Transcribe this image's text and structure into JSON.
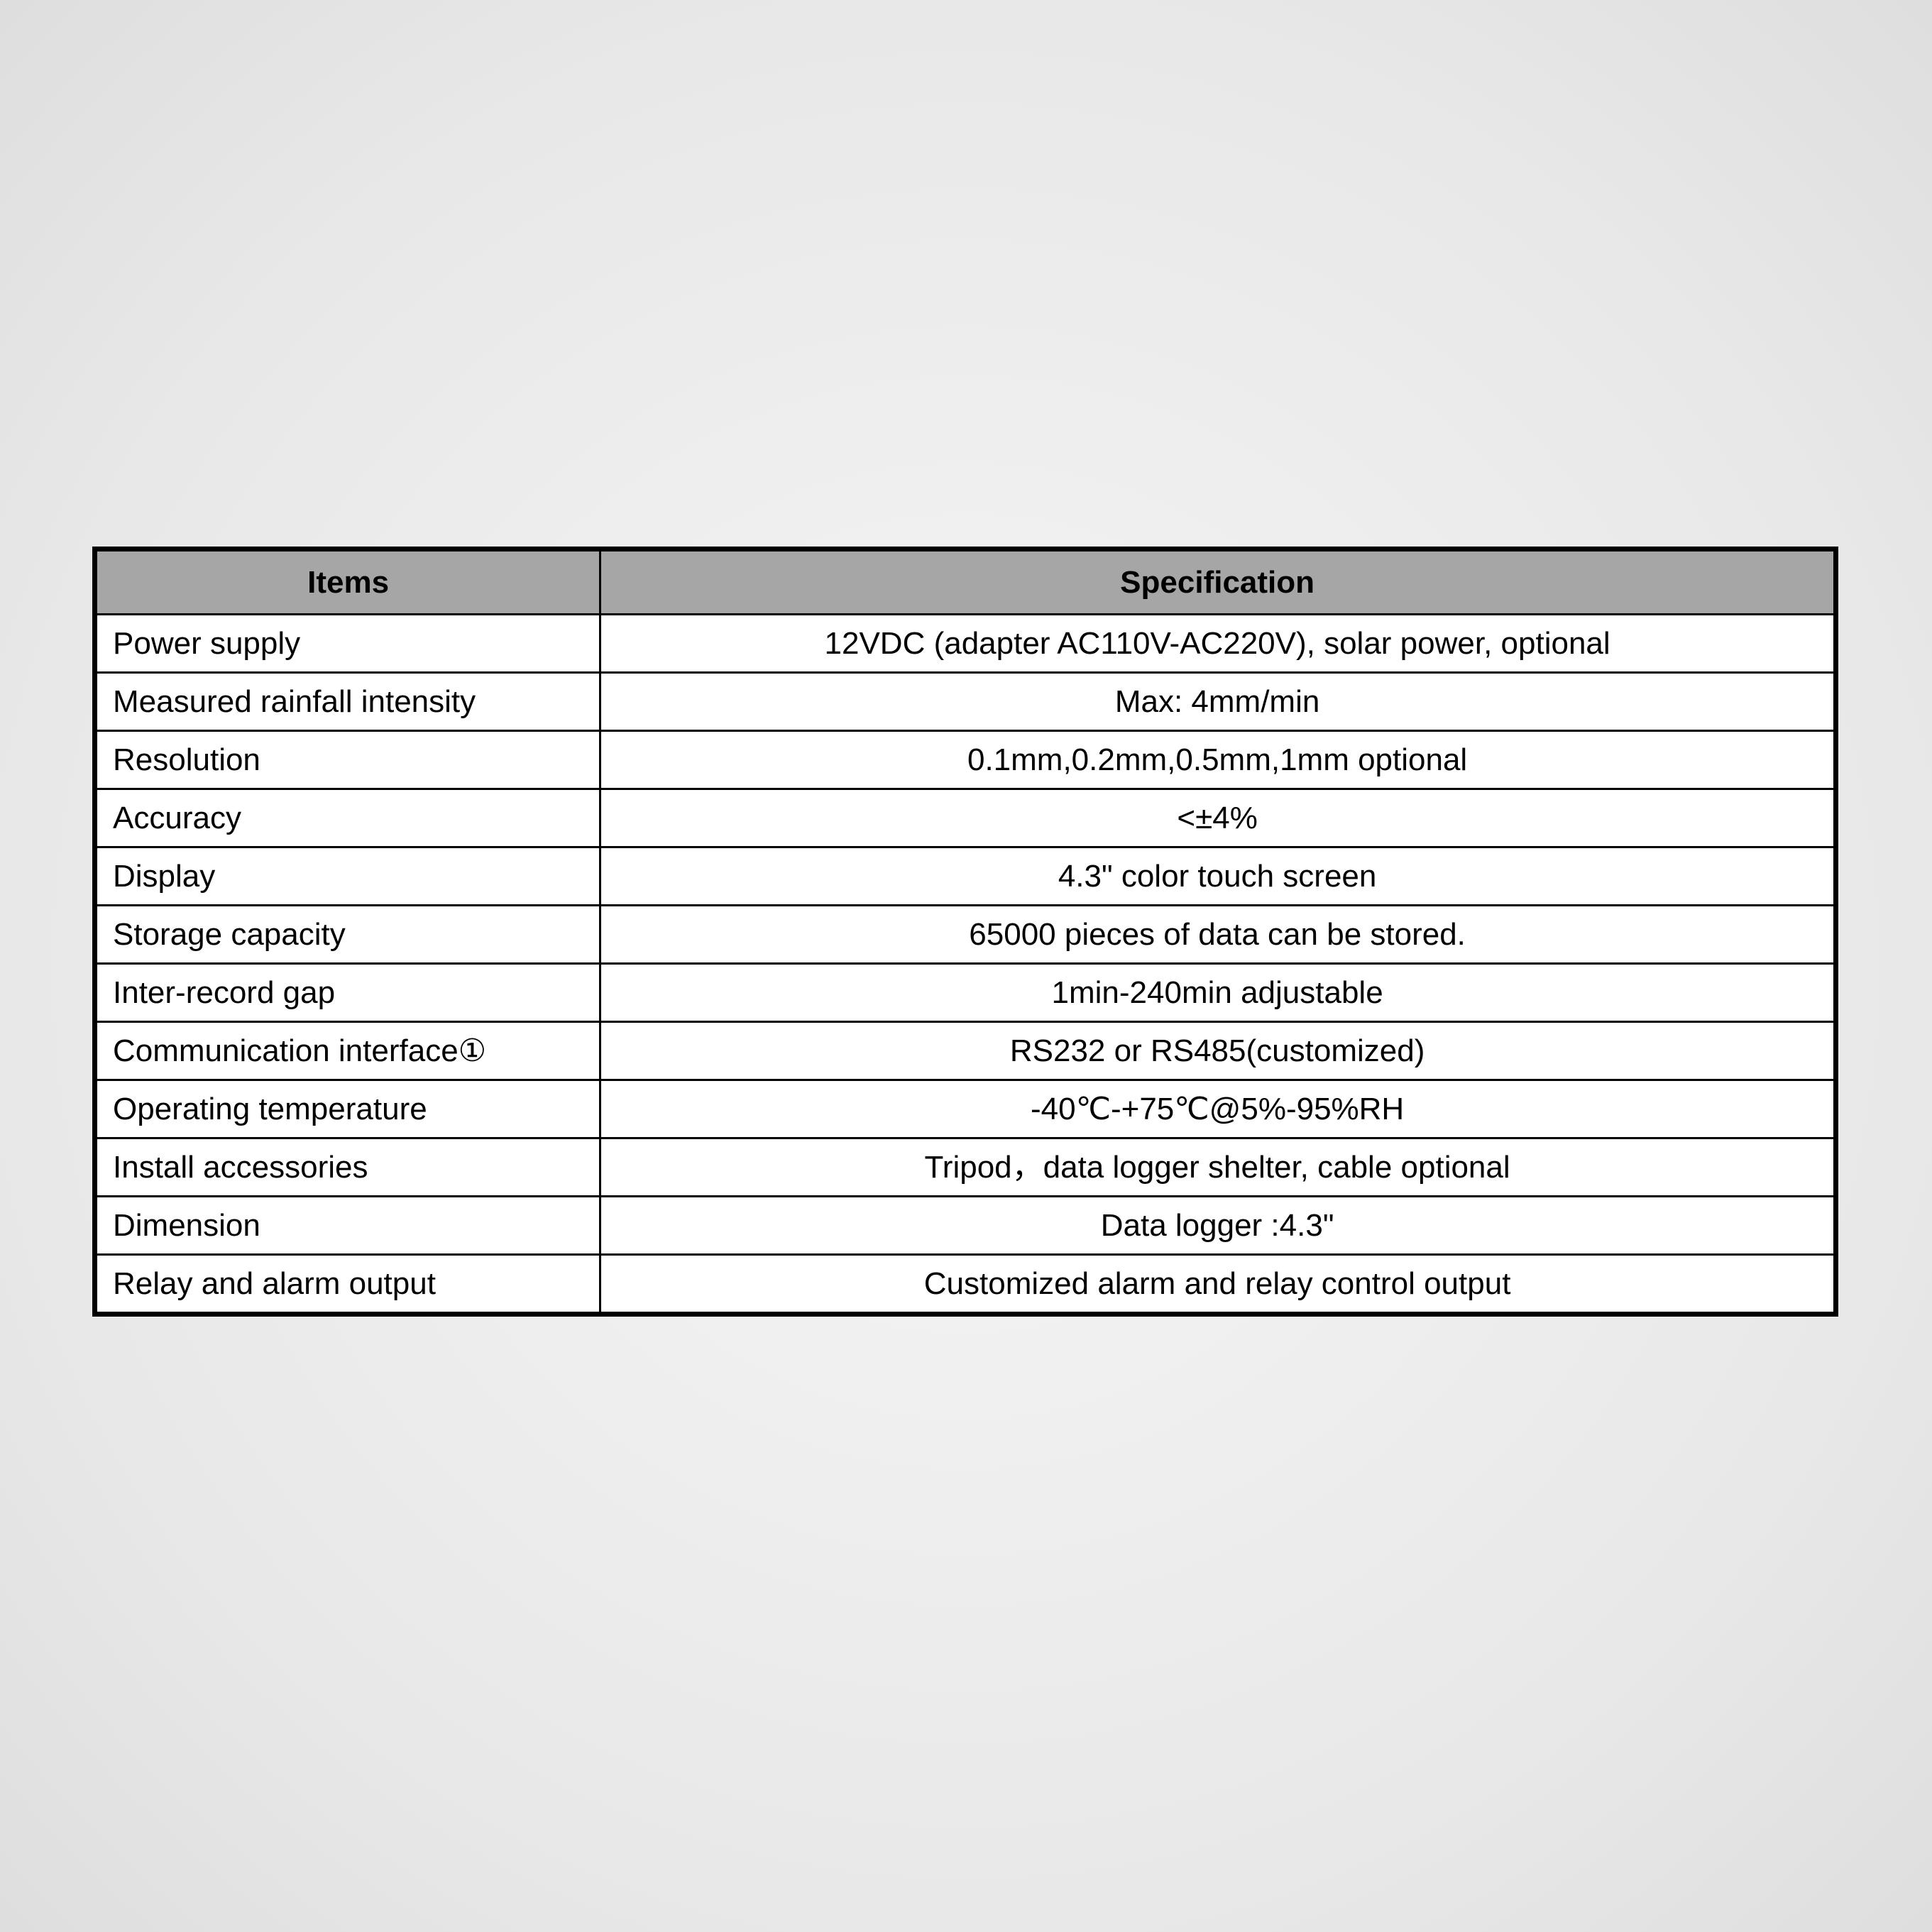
{
  "table": {
    "type": "table",
    "background_color": "#ffffff",
    "border_color": "#000000",
    "header_bg": "#a6a6a6",
    "font_size": 44,
    "columns": [
      {
        "label": "Items",
        "align_header": "center",
        "align_body": "left",
        "width_pct": 29
      },
      {
        "label": "Specification",
        "align_header": "center",
        "align_body": "center",
        "width_pct": 71
      }
    ],
    "rows": [
      {
        "item": "Power supply",
        "spec": "12VDC (adapter AC110V-AC220V), solar power, optional"
      },
      {
        "item": "Measured rainfall intensity",
        "spec": "Max: 4mm/min"
      },
      {
        "item": "Resolution",
        "spec": "0.1mm,0.2mm,0.5mm,1mm optional"
      },
      {
        "item": "Accuracy",
        "spec": "<±4%"
      },
      {
        "item": "Display",
        "spec": "4.3\" color touch screen"
      },
      {
        "item": "Storage capacity",
        "spec": "65000 pieces of data can be stored."
      },
      {
        "item": "Inter-record gap",
        "spec": "1min-240min adjustable"
      },
      {
        "item": "Communication interface①",
        "spec": "RS232 or RS485(customized)"
      },
      {
        "item": "Operating temperature",
        "spec": "-40℃-+75℃@5%-95%RH"
      },
      {
        "item": "Install accessories",
        "spec": "Tripod，data logger shelter, cable optional"
      },
      {
        "item": "Dimension",
        "spec": "Data logger :4.3\""
      },
      {
        "item": "Relay and alarm output",
        "spec": "Customized alarm and relay control output"
      }
    ]
  }
}
